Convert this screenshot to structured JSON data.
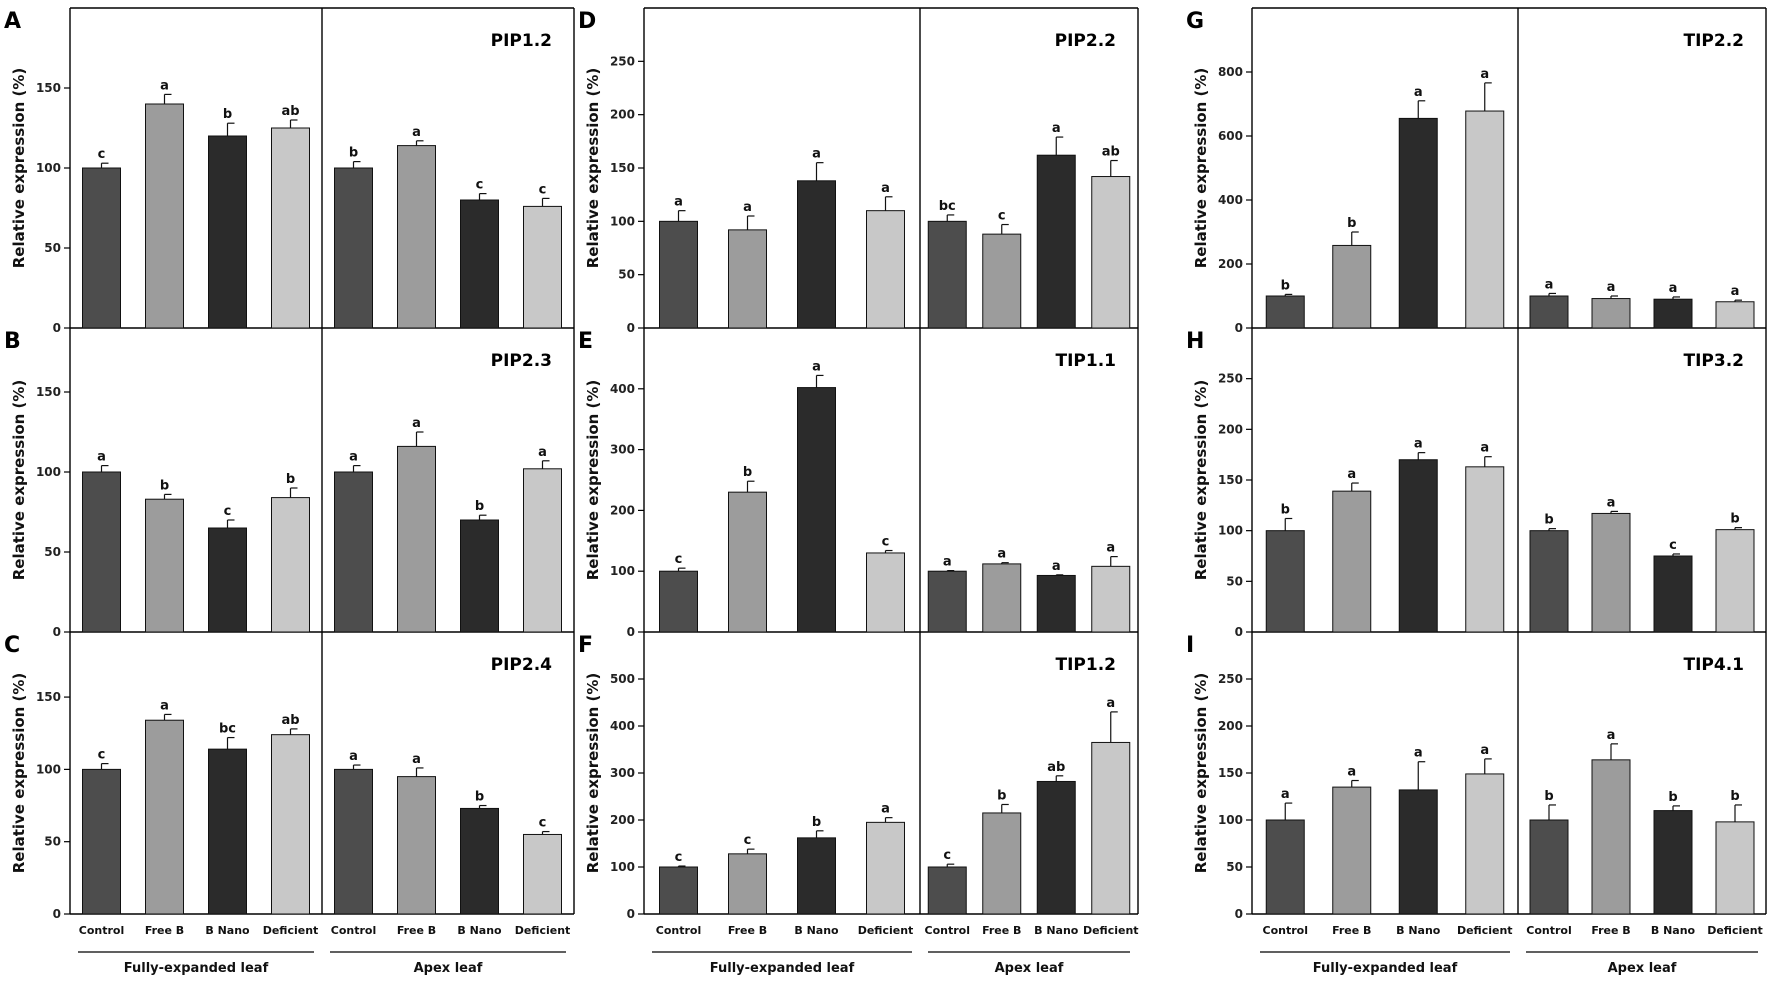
{
  "figure": {
    "ylabel": "Relative expression (%)",
    "categories": [
      "Control",
      "Free B",
      "B Nano",
      "Deficient"
    ],
    "group_labels": [
      "Fully-expanded leaf",
      "Apex leaf"
    ],
    "bar_colors": [
      "#4d4d4d",
      "#9c9c9c",
      "#2b2b2b",
      "#c8c8c8"
    ]
  },
  "chart_data": [
    {
      "type": "bar",
      "panel": "A",
      "gene": "PIP1.2",
      "title": "PIP1.2",
      "ylabel": "Relative expression (%)",
      "ylim": [
        0,
        200
      ],
      "yticks": [
        0,
        50,
        100,
        150
      ],
      "categories": [
        "Control",
        "Free B",
        "B Nano",
        "Deficient"
      ],
      "groups": [
        {
          "name": "Fully-expanded leaf",
          "values": [
            100,
            140,
            120,
            125
          ],
          "errors": [
            3,
            6,
            8,
            5
          ],
          "letters": [
            "c",
            "a",
            "b",
            "ab"
          ]
        },
        {
          "name": "Apex leaf",
          "values": [
            100,
            114,
            80,
            76
          ],
          "errors": [
            4,
            3,
            4,
            5
          ],
          "letters": [
            "b",
            "a",
            "c",
            "c"
          ]
        }
      ]
    },
    {
      "type": "bar",
      "panel": "B",
      "gene": "PIP2.3",
      "title": "PIP2.3",
      "ylabel": "Relative expression (%)",
      "ylim": [
        0,
        190
      ],
      "yticks": [
        0,
        50,
        100,
        150
      ],
      "categories": [
        "Control",
        "Free B",
        "B Nano",
        "Deficient"
      ],
      "groups": [
        {
          "name": "Fully-expanded leaf",
          "values": [
            100,
            83,
            65,
            84
          ],
          "errors": [
            4,
            3,
            5,
            6
          ],
          "letters": [
            "a",
            "b",
            "c",
            "b"
          ]
        },
        {
          "name": "Apex leaf",
          "values": [
            100,
            116,
            70,
            102
          ],
          "errors": [
            4,
            9,
            3,
            5
          ],
          "letters": [
            "a",
            "a",
            "b",
            "a"
          ]
        }
      ]
    },
    {
      "type": "bar",
      "panel": "C",
      "gene": "PIP2.4",
      "title": "PIP2.4",
      "ylabel": "Relative expression (%)",
      "ylim": [
        0,
        195
      ],
      "yticks": [
        0,
        50,
        100,
        150
      ],
      "categories": [
        "Control",
        "Free B",
        "B Nano",
        "Deficient"
      ],
      "groups": [
        {
          "name": "Fully-expanded leaf",
          "values": [
            100,
            134,
            114,
            124
          ],
          "errors": [
            4,
            4,
            8,
            4
          ],
          "letters": [
            "c",
            "a",
            "bc",
            "ab"
          ]
        },
        {
          "name": "Apex leaf",
          "values": [
            100,
            95,
            73,
            55
          ],
          "errors": [
            3,
            6,
            2,
            2
          ],
          "letters": [
            "a",
            "a",
            "b",
            "c"
          ]
        }
      ]
    },
    {
      "type": "bar",
      "panel": "D",
      "gene": "PIP2.2",
      "title": "PIP2.2",
      "ylabel": "Relative expression (%)",
      "ylim": [
        0,
        300
      ],
      "yticks": [
        0,
        50,
        100,
        150,
        200,
        250
      ],
      "categories": [
        "Control",
        "Free B",
        "B Nano",
        "Deficient"
      ],
      "groups": [
        {
          "name": "Fully-expanded leaf",
          "values": [
            100,
            92,
            138,
            110
          ],
          "errors": [
            10,
            13,
            17,
            13
          ],
          "letters": [
            "a",
            "a",
            "a",
            "a"
          ]
        },
        {
          "name": "Apex leaf",
          "values": [
            100,
            88,
            162,
            142
          ],
          "errors": [
            6,
            9,
            17,
            15
          ],
          "letters": [
            "bc",
            "c",
            "a",
            "ab"
          ]
        }
      ]
    },
    {
      "type": "bar",
      "panel": "E",
      "gene": "TIP1.1",
      "title": "TIP1.1",
      "ylabel": "Relative expression (%)",
      "ylim": [
        0,
        500
      ],
      "yticks": [
        0,
        100,
        200,
        300,
        400
      ],
      "categories": [
        "Control",
        "Free B",
        "B Nano",
        "Deficient"
      ],
      "groups": [
        {
          "name": "Fully-expanded leaf",
          "values": [
            100,
            230,
            402,
            130
          ],
          "errors": [
            5,
            18,
            20,
            4
          ],
          "letters": [
            "c",
            "b",
            "a",
            "c"
          ]
        },
        {
          "name": "Apex leaf",
          "values": [
            100,
            112,
            93,
            108
          ],
          "errors": [
            1,
            2,
            1,
            16
          ],
          "letters": [
            "a",
            "a",
            "a",
            "a"
          ]
        }
      ]
    },
    {
      "type": "bar",
      "panel": "F",
      "gene": "TIP1.2",
      "title": "TIP1.2",
      "ylabel": "Relative expression (%)",
      "ylim": [
        0,
        600
      ],
      "yticks": [
        0,
        100,
        200,
        300,
        400,
        500
      ],
      "categories": [
        "Control",
        "Free B",
        "B Nano",
        "Deficient"
      ],
      "groups": [
        {
          "name": "Fully-expanded leaf",
          "values": [
            100,
            128,
            162,
            195
          ],
          "errors": [
            2,
            10,
            15,
            10
          ],
          "letters": [
            "c",
            "c",
            "b",
            "a"
          ]
        },
        {
          "name": "Apex leaf",
          "values": [
            100,
            215,
            282,
            365
          ],
          "errors": [
            6,
            18,
            12,
            65
          ],
          "letters": [
            "c",
            "b",
            "ab",
            "a"
          ]
        }
      ]
    },
    {
      "type": "bar",
      "panel": "G",
      "gene": "TIP2.2",
      "title": "TIP2.2",
      "ylabel": "Relative expression (%)",
      "ylim": [
        0,
        1000
      ],
      "yticks": [
        0,
        200,
        400,
        600,
        800
      ],
      "categories": [
        "Control",
        "Free B",
        "B Nano",
        "Deficient"
      ],
      "groups": [
        {
          "name": "Fully-expanded leaf",
          "values": [
            100,
            258,
            655,
            678
          ],
          "errors": [
            5,
            42,
            55,
            88
          ],
          "letters": [
            "b",
            "b",
            "a",
            "a"
          ]
        },
        {
          "name": "Apex leaf",
          "values": [
            100,
            92,
            90,
            82
          ],
          "errors": [
            8,
            8,
            7,
            5
          ],
          "letters": [
            "a",
            "a",
            "a",
            "a"
          ]
        }
      ]
    },
    {
      "type": "bar",
      "panel": "H",
      "gene": "TIP3.2",
      "title": "TIP3.2",
      "ylabel": "Relative expression (%)",
      "ylim": [
        0,
        300
      ],
      "yticks": [
        0,
        50,
        100,
        150,
        200,
        250
      ],
      "categories": [
        "Control",
        "Free B",
        "B Nano",
        "Deficient"
      ],
      "groups": [
        {
          "name": "Fully-expanded leaf",
          "values": [
            100,
            139,
            170,
            163
          ],
          "errors": [
            12,
            8,
            7,
            10
          ],
          "letters": [
            "b",
            "a",
            "a",
            "a"
          ]
        },
        {
          "name": "Apex leaf",
          "values": [
            100,
            117,
            75,
            101
          ],
          "errors": [
            2,
            2,
            2,
            2
          ],
          "letters": [
            "b",
            "a",
            "c",
            "b"
          ]
        }
      ]
    },
    {
      "type": "bar",
      "panel": "I",
      "gene": "TIP4.1",
      "title": "TIP4.1",
      "ylabel": "Relative expression (%)",
      "ylim": [
        0,
        300
      ],
      "yticks": [
        0,
        50,
        100,
        150,
        200,
        250
      ],
      "categories": [
        "Control",
        "Free B",
        "B Nano",
        "Deficient"
      ],
      "groups": [
        {
          "name": "Fully-expanded leaf",
          "values": [
            100,
            135,
            132,
            149
          ],
          "errors": [
            18,
            7,
            30,
            16
          ],
          "letters": [
            "a",
            "a",
            "a",
            "a"
          ]
        },
        {
          "name": "Apex leaf",
          "values": [
            100,
            164,
            110,
            98
          ],
          "errors": [
            16,
            17,
            5,
            18
          ],
          "letters": [
            "b",
            "a",
            "b",
            "b"
          ]
        }
      ]
    }
  ]
}
